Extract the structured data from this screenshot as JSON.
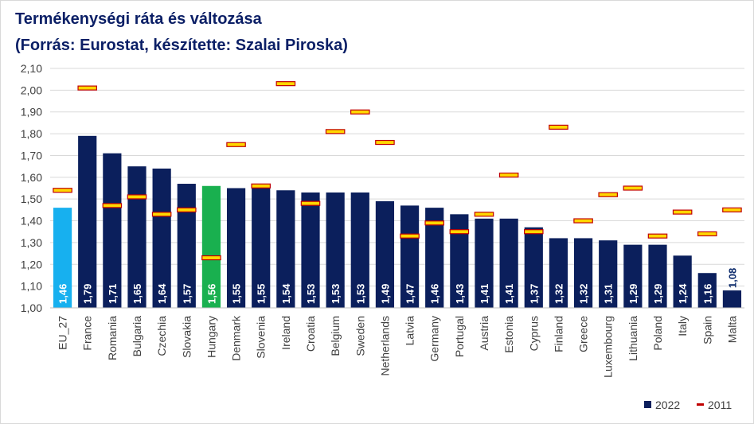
{
  "title": "Termékenységi ráta és változása",
  "subtitle": "(Forrás: Eurostat, készítette: Szalai Piroska)",
  "colors": {
    "series_2022": "#0b1f5c",
    "eu27": "#17b0ef",
    "hungary": "#19b04f",
    "marker_fill": "#ffd700",
    "marker_border": "#c00000",
    "gridline": "#d9d9d9"
  },
  "chart_data": {
    "type": "bar",
    "title": "Termékenységi ráta és változása",
    "subtitle": "(Forrás: Eurostat, készítette: Szalai Piroska)",
    "xlabel": "",
    "ylabel": "",
    "ylim": [
      1.0,
      2.1
    ],
    "ystep": 0.1,
    "yticks": [
      "1,00",
      "1,10",
      "1,20",
      "1,30",
      "1,40",
      "1,50",
      "1,60",
      "1,70",
      "1,80",
      "1,90",
      "2,00",
      "2,10"
    ],
    "grid": true,
    "legend_position": "bottom-right",
    "categories": [
      "EU_27",
      "France",
      "Romania",
      "Bulgaria",
      "Czechia",
      "Slovakia",
      "Hungary",
      "Denmark",
      "Slovenia",
      "Ireland",
      "Croatia",
      "Belgium",
      "Sweden",
      "Netherlands",
      "Latvia",
      "Germany",
      "Portugal",
      "Austria",
      "Estonia",
      "Cyprus",
      "Finland",
      "Greece",
      "Luxembourg",
      "Lithuania",
      "Poland",
      "Italy",
      "Spain",
      "Malta"
    ],
    "series": [
      {
        "name": "2022",
        "type": "bar",
        "values": [
          1.46,
          1.79,
          1.71,
          1.65,
          1.64,
          1.57,
          1.56,
          1.55,
          1.55,
          1.54,
          1.53,
          1.53,
          1.53,
          1.49,
          1.47,
          1.46,
          1.43,
          1.41,
          1.41,
          1.37,
          1.32,
          1.32,
          1.31,
          1.29,
          1.29,
          1.24,
          1.16,
          1.08
        ],
        "labels": [
          "1,46",
          "1,79",
          "1,71",
          "1,65",
          "1,64",
          "1,57",
          "1,56",
          "1,55",
          "1,55",
          "1,54",
          "1,53",
          "1,53",
          "1,53",
          "1,49",
          "1,47",
          "1,46",
          "1,43",
          "1,41",
          "1,41",
          "1,37",
          "1,32",
          "1,32",
          "1,31",
          "1,29",
          "1,29",
          "1,24",
          "1,16",
          "1,08"
        ]
      },
      {
        "name": "2011",
        "type": "marker",
        "values": [
          1.54,
          2.01,
          1.47,
          1.51,
          1.43,
          1.45,
          1.23,
          1.75,
          1.56,
          2.03,
          1.48,
          1.81,
          1.9,
          1.76,
          1.33,
          1.39,
          1.35,
          1.43,
          1.61,
          1.35,
          1.83,
          1.4,
          1.52,
          1.55,
          1.33,
          1.44,
          1.34,
          1.45
        ]
      }
    ]
  }
}
